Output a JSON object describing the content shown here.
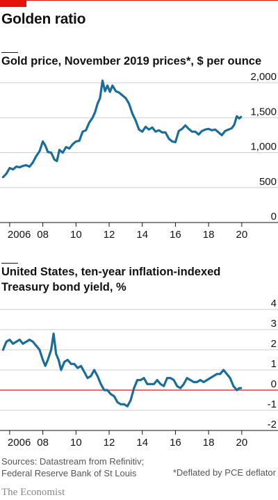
{
  "header": {
    "title": "Golden ratio"
  },
  "chart_data": [
    {
      "type": "line",
      "title": "Gold price, November 2019 prices*, $ per ounce",
      "xlabel": "",
      "ylabel": "",
      "xlim": [
        2005.5,
        2020.3
      ],
      "ylim": [
        0,
        2000
      ],
      "y_ticks": [
        0,
        500,
        1000,
        1500,
        2000
      ],
      "y_tick_labels": [
        "0",
        "500",
        "1,000",
        "1,500",
        "2,000"
      ],
      "x_ticks": [
        2006,
        2008,
        2010,
        2012,
        2014,
        2016,
        2018,
        2020
      ],
      "x_tick_labels": [
        "2006",
        "08",
        "10",
        "12",
        "14",
        "16",
        "18",
        "20"
      ],
      "grid": true,
      "series": [
        {
          "color": "#1a6d9a",
          "x": [
            2005.6,
            2005.8,
            2006.0,
            2006.2,
            2006.4,
            2006.6,
            2006.8,
            2007.0,
            2007.2,
            2007.4,
            2007.6,
            2007.8,
            2008.0,
            2008.15,
            2008.3,
            2008.5,
            2008.7,
            2008.85,
            2009.0,
            2009.2,
            2009.4,
            2009.6,
            2009.8,
            2010.0,
            2010.2,
            2010.4,
            2010.6,
            2010.8,
            2011.0,
            2011.15,
            2011.3,
            2011.45,
            2011.6,
            2011.75,
            2011.9,
            2012.05,
            2012.2,
            2012.4,
            2012.6,
            2012.8,
            2013.0,
            2013.2,
            2013.4,
            2013.6,
            2013.8,
            2014.0,
            2014.2,
            2014.4,
            2014.6,
            2014.8,
            2015.0,
            2015.2,
            2015.4,
            2015.6,
            2015.8,
            2016.0,
            2016.2,
            2016.4,
            2016.6,
            2016.8,
            2017.0,
            2017.2,
            2017.4,
            2017.6,
            2017.8,
            2018.0,
            2018.2,
            2018.4,
            2018.6,
            2018.8,
            2019.0,
            2019.2,
            2019.4,
            2019.55,
            2019.7,
            2019.85,
            2019.95
          ],
          "y": [
            650,
            700,
            780,
            760,
            800,
            790,
            810,
            820,
            800,
            860,
            950,
            1020,
            1160,
            1100,
            1010,
            1000,
            900,
            880,
            1040,
            1000,
            1080,
            1060,
            1120,
            1160,
            1170,
            1300,
            1320,
            1430,
            1500,
            1580,
            1700,
            1780,
            2030,
            1880,
            1960,
            1870,
            1960,
            1880,
            1860,
            1820,
            1780,
            1700,
            1560,
            1460,
            1330,
            1300,
            1370,
            1330,
            1360,
            1300,
            1320,
            1290,
            1290,
            1200,
            1160,
            1150,
            1310,
            1340,
            1390,
            1340,
            1300,
            1300,
            1260,
            1310,
            1330,
            1340,
            1320,
            1330,
            1290,
            1250,
            1310,
            1330,
            1350,
            1400,
            1520,
            1490,
            1510
          ]
        }
      ]
    },
    {
      "type": "line",
      "title": "United States, ten-year inflation-indexed Treasury bond yield, %",
      "xlabel": "",
      "ylabel": "",
      "xlim": [
        2005.5,
        2020.3
      ],
      "ylim": [
        -2,
        4
      ],
      "y_ticks": [
        -2,
        -1,
        0,
        1,
        2,
        3,
        4
      ],
      "y_tick_labels": [
        "-2",
        "-1",
        "0",
        "1",
        "2",
        "3",
        "4"
      ],
      "x_ticks": [
        2006,
        2008,
        2010,
        2012,
        2014,
        2016,
        2018,
        2020
      ],
      "x_tick_labels": [
        "2006",
        "08",
        "10",
        "12",
        "14",
        "16",
        "18",
        "20"
      ],
      "grid": true,
      "zero_line_color": "#e3120b",
      "series": [
        {
          "color": "#1a6d9a",
          "x": [
            2005.6,
            2005.8,
            2006.0,
            2006.2,
            2006.4,
            2006.6,
            2006.8,
            2007.0,
            2007.2,
            2007.4,
            2007.6,
            2007.8,
            2008.0,
            2008.15,
            2008.3,
            2008.5,
            2008.65,
            2008.8,
            2008.95,
            2009.1,
            2009.3,
            2009.5,
            2009.7,
            2009.9,
            2010.1,
            2010.3,
            2010.5,
            2010.7,
            2010.9,
            2011.1,
            2011.3,
            2011.5,
            2011.7,
            2011.9,
            2012.1,
            2012.3,
            2012.5,
            2012.7,
            2012.9,
            2013.1,
            2013.3,
            2013.5,
            2013.7,
            2013.9,
            2014.1,
            2014.3,
            2014.5,
            2014.7,
            2014.9,
            2015.1,
            2015.3,
            2015.5,
            2015.7,
            2015.9,
            2016.1,
            2016.3,
            2016.5,
            2016.7,
            2016.9,
            2017.1,
            2017.3,
            2017.5,
            2017.7,
            2017.9,
            2018.1,
            2018.3,
            2018.5,
            2018.7,
            2018.9,
            2019.1,
            2019.3,
            2019.5,
            2019.7,
            2019.85,
            2019.95
          ],
          "y": [
            2.0,
            2.4,
            2.5,
            2.3,
            2.4,
            2.5,
            2.3,
            2.4,
            2.5,
            2.4,
            2.2,
            2.0,
            1.5,
            1.2,
            1.5,
            2.0,
            2.8,
            1.8,
            1.5,
            1.0,
            1.4,
            1.5,
            1.3,
            1.3,
            1.1,
            1.2,
            0.9,
            0.6,
            0.7,
            1.0,
            0.7,
            0.3,
            0.0,
            0.0,
            -0.2,
            -0.3,
            -0.6,
            -0.7,
            -0.7,
            -0.8,
            -0.5,
            0.1,
            0.5,
            0.5,
            0.6,
            0.3,
            0.3,
            0.3,
            0.5,
            0.3,
            0.2,
            0.6,
            0.6,
            0.5,
            0.2,
            0.1,
            0.3,
            0.6,
            0.5,
            0.4,
            0.4,
            0.5,
            0.4,
            0.5,
            0.6,
            0.7,
            0.8,
            0.8,
            1.0,
            0.8,
            0.6,
            0.2,
            0.0,
            0.1,
            0.1
          ]
        }
      ]
    }
  ],
  "footer": {
    "source_line1": "Sources: Datastream from Refinitiv;",
    "source_line2": "Federal Reserve Bank of St Louis",
    "footnote": "*Deflated by PCE deflator",
    "logo": "The Economist"
  }
}
